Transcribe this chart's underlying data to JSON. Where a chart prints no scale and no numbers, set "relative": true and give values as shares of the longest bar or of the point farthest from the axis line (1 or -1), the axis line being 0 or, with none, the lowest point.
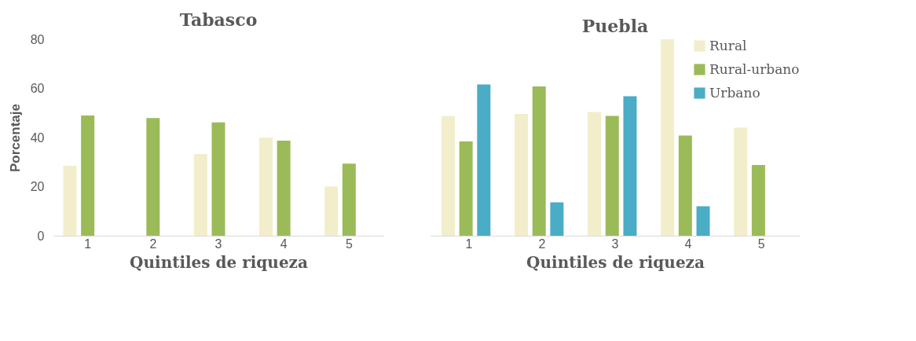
{
  "chart_data": [
    {
      "type": "bar",
      "title": "Tabasco",
      "xlabel": "Quintiles de riqueza",
      "ylabel": "Porcentaje",
      "categories": [
        "1",
        "2",
        "3",
        "4",
        "5"
      ],
      "ylim": [
        0,
        80
      ],
      "yticks": [
        0,
        20,
        40,
        60,
        80
      ],
      "grid": false,
      "legend": false,
      "series": [
        {
          "color": "#f2eecb",
          "values": [
            28.5,
            null,
            33.3,
            39.9,
            20.1
          ]
        },
        {
          "color": "#9bbb59",
          "values": [
            49,
            47.9,
            46.2,
            38.7,
            29.4
          ]
        }
      ]
    },
    {
      "type": "bar",
      "title": "Puebla",
      "xlabel": "Quintiles de riqueza",
      "categories": [
        "1",
        "2",
        "3",
        "4",
        "5"
      ],
      "relative": true,
      "tick_labels": "x",
      "legend": "top right",
      "series": [
        {
          "name": "Rural",
          "color": "#f2eecb",
          "values": [
            0.61,
            0.62,
            0.63,
            1,
            0.55
          ]
        },
        {
          "name": "Rural-urbano",
          "color": "#9bbb59",
          "values": [
            0.48,
            0.76,
            0.61,
            0.51,
            0.36
          ]
        },
        {
          "name": "Urbano",
          "color": "#4bacc6",
          "values": [
            0.77,
            0.17,
            0.71,
            0.15,
            null
          ]
        }
      ]
    }
  ]
}
